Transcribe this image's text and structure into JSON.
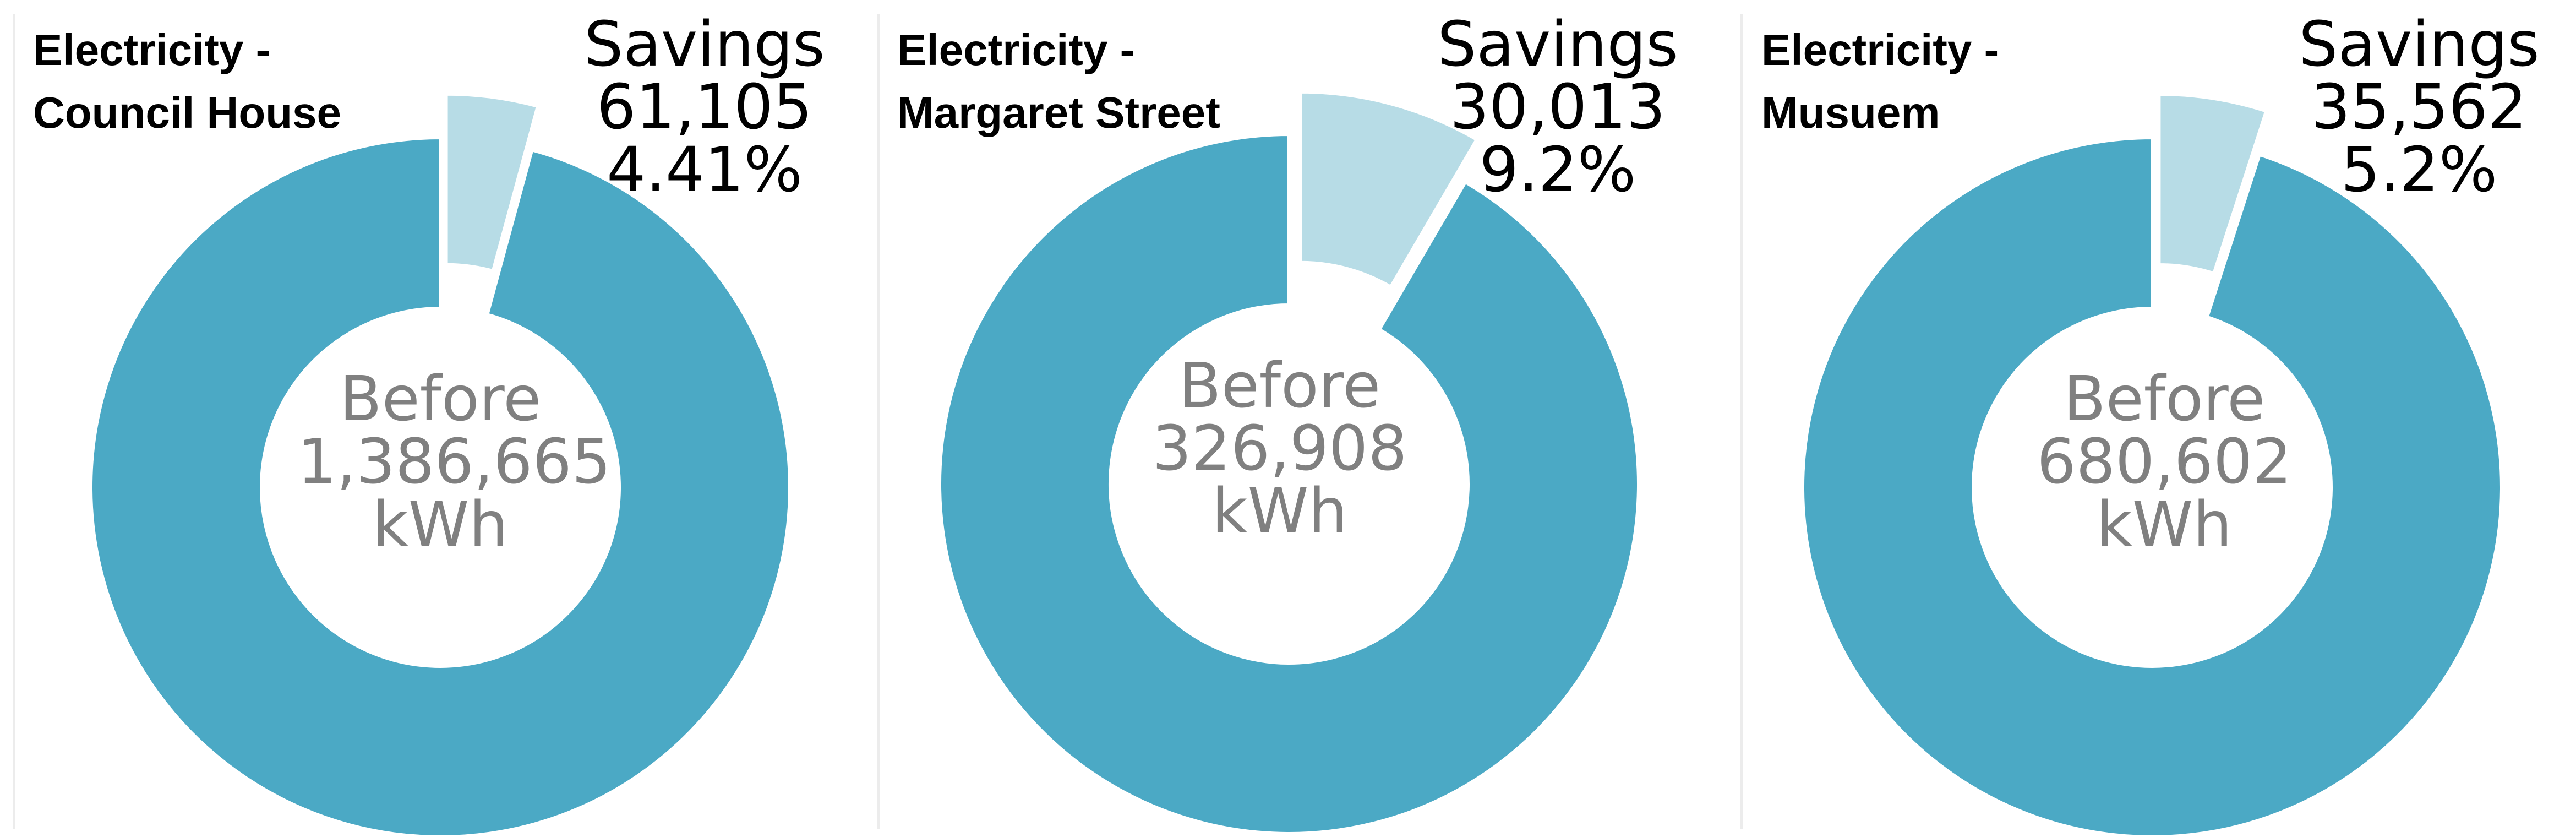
{
  "colors": {
    "before": "#4BA9C5",
    "savings": "#B7DCE6",
    "background": "#FFFFFF"
  },
  "chart_data": [
    {
      "type": "pie",
      "subtype": "donut",
      "title_lines": [
        "Electricity -",
        "Council House"
      ],
      "categories": [
        "Before",
        "Savings"
      ],
      "values": [
        1386665,
        61105
      ],
      "unit": "kWh",
      "exploded_slice": "Savings",
      "labels": {
        "center": [
          "Before",
          "1,386,665",
          "kWh"
        ],
        "savings": [
          "Savings",
          "61,105",
          "4.41%"
        ]
      }
    },
    {
      "type": "pie",
      "subtype": "donut",
      "title_lines": [
        "Electricity -",
        "Margaret Street"
      ],
      "categories": [
        "Before",
        "Savings"
      ],
      "values": [
        326908,
        30013
      ],
      "unit": "kWh",
      "exploded_slice": "Savings",
      "labels": {
        "center": [
          "Before",
          "326,908",
          "kWh"
        ],
        "savings": [
          "Savings",
          "30,013",
          "9.2%"
        ]
      }
    },
    {
      "type": "pie",
      "subtype": "donut",
      "title_lines": [
        "Electricity -",
        "Musuem"
      ],
      "categories": [
        "Before",
        "Savings"
      ],
      "values": [
        680602,
        35562
      ],
      "unit": "kWh",
      "exploded_slice": "Savings",
      "labels": {
        "center": [
          "Before",
          "680,602",
          "kWh"
        ],
        "savings": [
          "Savings",
          "35,562",
          "5.2%"
        ]
      }
    }
  ]
}
